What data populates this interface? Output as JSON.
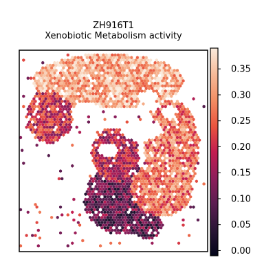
{
  "chart_data": {
    "type": "heatmap",
    "subtype": "spatial hexbin (spot activity map)",
    "title_line1": "ZH916T1",
    "title_line2": "Xenobiotic Metabolism activity",
    "xlabel": "",
    "ylabel": "",
    "grid": false,
    "colormap": "rocket",
    "colorbar": {
      "range": [
        -0.01,
        0.39
      ],
      "ticks": [
        0.0,
        0.05,
        0.1,
        0.15,
        0.2,
        0.25,
        0.3,
        0.35
      ],
      "tick_labels": [
        "0.00",
        "0.05",
        "0.10",
        "0.15",
        "0.20",
        "0.25",
        "0.30",
        "0.35"
      ]
    },
    "regions": [
      {
        "name": "upper arc band",
        "value": 0.32
      },
      {
        "name": "upper-left lobe",
        "value": 0.2
      },
      {
        "name": "right lobe",
        "value": 0.27
      },
      {
        "name": "center strip",
        "value": 0.18
      },
      {
        "name": "lower cluster",
        "value": 0.1
      }
    ]
  }
}
